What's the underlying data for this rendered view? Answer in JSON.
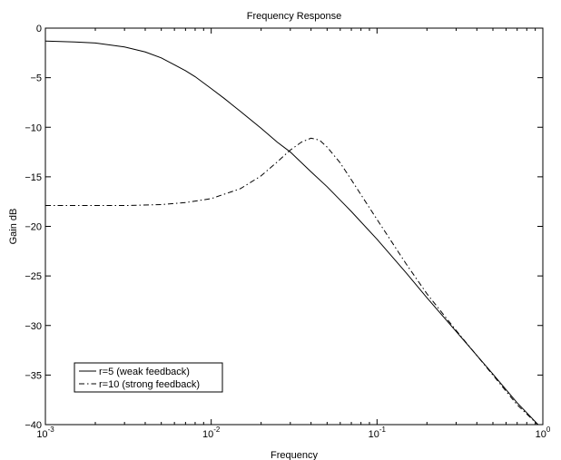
{
  "chart_data": {
    "type": "line",
    "title": "Frequency Response",
    "xlabel": "Frequency",
    "ylabel": "Gain dB",
    "xscale": "log",
    "xlim": [
      0.001,
      1
    ],
    "ylim": [
      -40,
      0
    ],
    "xticks": [
      {
        "value": 0.001,
        "base": "10",
        "exp": "-3"
      },
      {
        "value": 0.01,
        "base": "10",
        "exp": "-2"
      },
      {
        "value": 0.1,
        "base": "10",
        "exp": "-1"
      },
      {
        "value": 1,
        "base": "10",
        "exp": "0"
      }
    ],
    "yticks": [
      {
        "value": 0,
        "label": "0"
      },
      {
        "value": -5,
        "label": "−5"
      },
      {
        "value": -10,
        "label": "−10"
      },
      {
        "value": -15,
        "label": "−15"
      },
      {
        "value": -20,
        "label": "−20"
      },
      {
        "value": -25,
        "label": "−25"
      },
      {
        "value": -30,
        "label": "−30"
      },
      {
        "value": -35,
        "label": "−35"
      },
      {
        "value": -40,
        "label": "−40"
      }
    ],
    "grid": false,
    "legend": "bottom-left",
    "series": [
      {
        "name": "r=5 (weak feedback)",
        "style": "solid",
        "color": "#000000",
        "x": [
          0.001,
          0.0015,
          0.002,
          0.003,
          0.004,
          0.005,
          0.006,
          0.007,
          0.008,
          0.01,
          0.012,
          0.015,
          0.02,
          0.025,
          0.03,
          0.04,
          0.05,
          0.07,
          0.1,
          0.15,
          0.2,
          0.3,
          0.5,
          0.7,
          1.0
        ],
        "y": [
          -1.3,
          -1.4,
          -1.5,
          -1.9,
          -2.4,
          -3.0,
          -3.7,
          -4.3,
          -4.9,
          -6.1,
          -7.1,
          -8.4,
          -10.1,
          -11.5,
          -12.5,
          -14.5,
          -16.0,
          -18.5,
          -21.3,
          -24.7,
          -27.2,
          -30.6,
          -34.9,
          -37.8,
          -40.5
        ]
      },
      {
        "name": "r=10 (strong feedback)",
        "style": "dashdot",
        "color": "#000000",
        "x": [
          0.001,
          0.002,
          0.003,
          0.005,
          0.007,
          0.01,
          0.015,
          0.02,
          0.025,
          0.03,
          0.035,
          0.04,
          0.045,
          0.05,
          0.06,
          0.07,
          0.08,
          0.1,
          0.15,
          0.2,
          0.3,
          0.5,
          0.7,
          1.0
        ],
        "y": [
          -17.9,
          -17.9,
          -17.9,
          -17.8,
          -17.6,
          -17.2,
          -16.2,
          -14.9,
          -13.5,
          -12.3,
          -11.5,
          -11.1,
          -11.3,
          -12.0,
          -13.6,
          -15.3,
          -16.8,
          -19.3,
          -23.8,
          -26.8,
          -30.5,
          -35.0,
          -38.0,
          -40.5
        ]
      }
    ]
  }
}
